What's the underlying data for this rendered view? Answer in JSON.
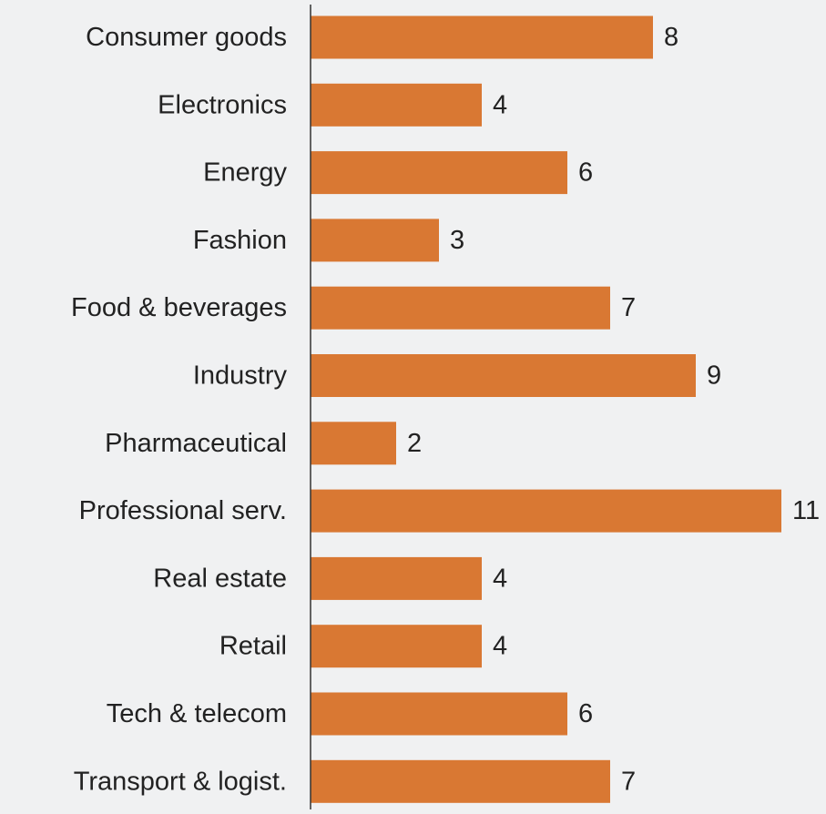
{
  "chart_data": {
    "type": "bar",
    "orientation": "horizontal",
    "categories": [
      "Consumer goods",
      "Electronics",
      "Energy",
      "Fashion",
      "Food & beverages",
      "Industry",
      "Pharmaceutical",
      "Professional serv.",
      "Real estate",
      "Retail",
      "Tech & telecom",
      "Transport & logist."
    ],
    "values": [
      8,
      4,
      6,
      3,
      7,
      9,
      2,
      11,
      4,
      4,
      6,
      7
    ],
    "xlim": [
      0,
      11
    ],
    "grid": false,
    "legend": "none",
    "colors": {
      "bar": "#d97833",
      "text": "#222222",
      "axis": "#333333",
      "background": "#f0f1f2"
    }
  }
}
